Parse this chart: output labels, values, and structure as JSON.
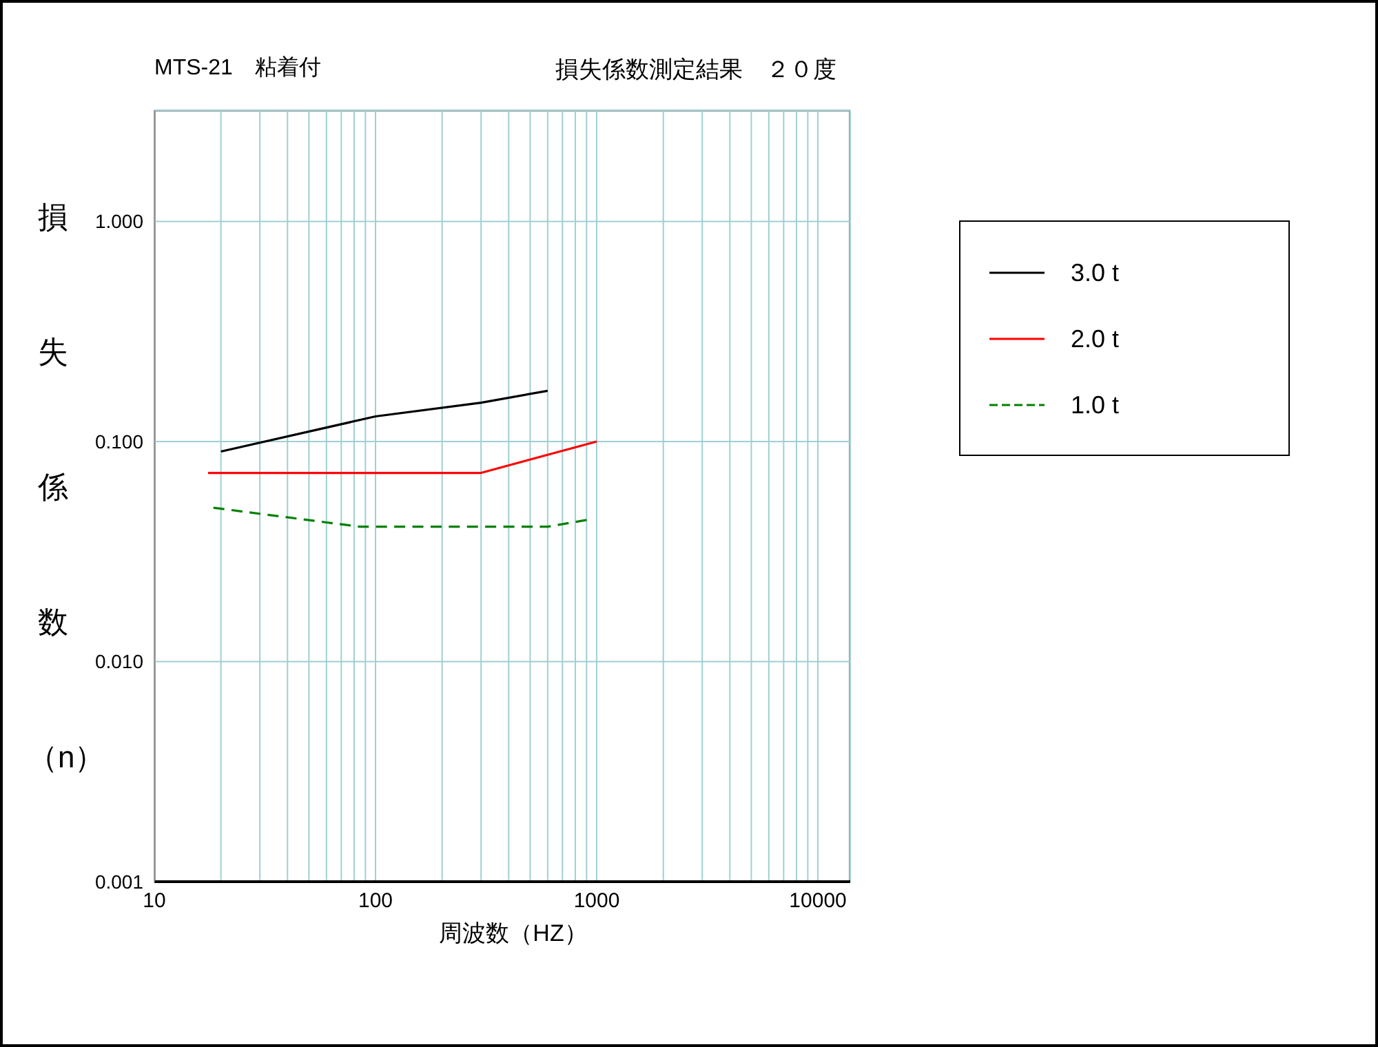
{
  "chart_data": {
    "type": "line",
    "title": "損失係数測定結果　２０度",
    "subtitle": "MTS-21　粘着付",
    "xlabel": "周波数（HZ）",
    "ylabel": "損失係数（n）",
    "log": "xy",
    "marker": "none",
    "grid": true,
    "legend": "right",
    "xlim": [
      10,
      14000
    ],
    "xticks": [
      10,
      {
        "value": 20,
        "label": null
      },
      {
        "value": 30,
        "label": null
      },
      {
        "value": 40,
        "label": null
      },
      {
        "value": 50,
        "label": null
      },
      {
        "value": 60,
        "label": null
      },
      {
        "value": 70,
        "label": null
      },
      {
        "value": 80,
        "label": null
      },
      {
        "value": 90,
        "label": null
      },
      100,
      {
        "value": 200,
        "label": null
      },
      {
        "value": 300,
        "label": null
      },
      {
        "value": 400,
        "label": null
      },
      {
        "value": 500,
        "label": null
      },
      {
        "value": 600,
        "label": null
      },
      {
        "value": 700,
        "label": null
      },
      {
        "value": 800,
        "label": null
      },
      {
        "value": 900,
        "label": null
      },
      1000,
      {
        "value": 2000,
        "label": null
      },
      {
        "value": 3000,
        "label": null
      },
      {
        "value": 4000,
        "label": null
      },
      {
        "value": 5000,
        "label": null
      },
      {
        "value": 6000,
        "label": null
      },
      {
        "value": 7000,
        "label": null
      },
      {
        "value": 8000,
        "label": null
      },
      {
        "value": 9000,
        "label": null
      },
      10000
    ],
    "ylim": [
      0.001,
      3.2
    ],
    "yticks": [
      {
        "value": 0.001,
        "label": "0.001"
      },
      {
        "value": 0.01,
        "label": "0.010"
      },
      {
        "value": 0.1,
        "label": "0.100"
      },
      {
        "value": 1,
        "label": "1.000"
      }
    ],
    "series": [
      {
        "name": "3.0 t",
        "color": "#000000",
        "x": [
          20,
          100,
          300,
          600
        ],
        "values": [
          0.09,
          0.13,
          0.15,
          0.17
        ]
      },
      {
        "name": "2.0 t",
        "color": "#ff0000",
        "x": [
          17.5,
          300,
          1000
        ],
        "values": [
          0.072,
          0.072,
          0.1
        ]
      },
      {
        "name": "1.0 t",
        "color": "#008000",
        "line_style": "dashed",
        "x": [
          18.5,
          85,
          600,
          900
        ],
        "values": [
          0.05,
          0.041,
          0.041,
          0.044
        ]
      }
    ]
  }
}
